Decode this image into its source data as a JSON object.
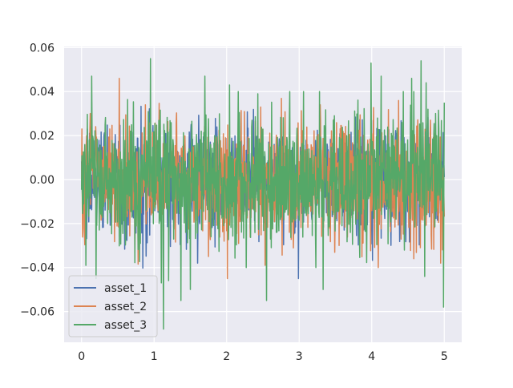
{
  "chart_data": {
    "type": "line",
    "title": "",
    "xlabel": "",
    "ylabel": "",
    "xlim": [
      -0.24,
      5.24
    ],
    "ylim": [
      -0.074,
      0.0605
    ],
    "x_range": [
      0,
      5
    ],
    "points_per_series": 1001,
    "xticks": [
      0,
      1,
      2,
      3,
      4,
      5
    ],
    "xtick_labels": [
      "0",
      "1",
      "2",
      "3",
      "4",
      "5"
    ],
    "yticks": [
      -0.06,
      -0.04,
      -0.02,
      0.0,
      0.02,
      0.04,
      0.06
    ],
    "ytick_labels": [
      "−0.06",
      "−0.04",
      "−0.02",
      "0.00",
      "0.02",
      "0.04",
      "0.06"
    ],
    "grid": true,
    "background": "#eaeaf2",
    "legend_position": "lower-left",
    "series": [
      {
        "name": "asset_1",
        "color": "#4c72b0",
        "approx_std": 0.012,
        "notable_points": [
          [
            1.22,
            0.023
          ],
          [
            1.6,
            -0.038
          ],
          [
            2.0,
            -0.02
          ],
          [
            3.35,
            0.01
          ]
        ]
      },
      {
        "name": "asset_2",
        "color": "#dd8452",
        "approx_std": 0.013,
        "notable_points": [
          [
            0.04,
            -0.024
          ],
          [
            0.12,
            0.03
          ],
          [
            0.52,
            0.046
          ],
          [
            0.88,
            0.034
          ],
          [
            1.75,
            -0.035
          ],
          [
            2.47,
            0.033
          ],
          [
            2.53,
            -0.039
          ],
          [
            3.29,
            0.034
          ],
          [
            3.55,
            -0.03
          ],
          [
            4.09,
            -0.04
          ],
          [
            4.58,
            -0.036
          ],
          [
            4.95,
            -0.038
          ]
        ]
      },
      {
        "name": "asset_3",
        "color": "#55a868",
        "approx_std": 0.014,
        "notable_points": [
          [
            0.14,
            0.047
          ],
          [
            0.2,
            -0.045
          ],
          [
            0.95,
            0.055
          ],
          [
            1.1,
            -0.047
          ],
          [
            1.13,
            -0.068
          ],
          [
            1.2,
            -0.046
          ],
          [
            1.37,
            -0.055
          ],
          [
            1.5,
            -0.05
          ],
          [
            1.7,
            0.047
          ],
          [
            2.04,
            0.043
          ],
          [
            2.16,
            0.04
          ],
          [
            2.27,
            -0.04
          ],
          [
            2.43,
            0.039
          ],
          [
            2.55,
            -0.055
          ],
          [
            3.06,
            0.04
          ],
          [
            3.23,
            -0.04
          ],
          [
            3.28,
            0.04
          ],
          [
            3.33,
            -0.05
          ],
          [
            3.99,
            0.053
          ],
          [
            4.13,
            0.047
          ],
          [
            4.55,
            0.046
          ],
          [
            4.68,
            0.054
          ],
          [
            4.75,
            0.044
          ],
          [
            4.88,
            0.03
          ],
          [
            4.99,
            -0.058
          ],
          [
            5.0,
            0.035
          ]
        ]
      }
    ]
  }
}
